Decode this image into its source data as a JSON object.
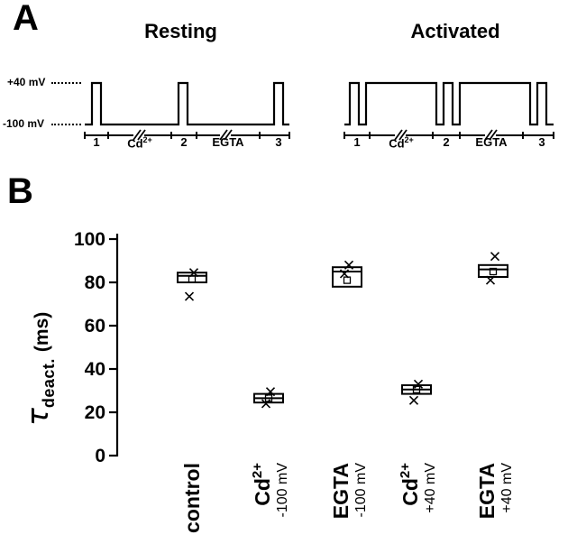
{
  "figure": {
    "panelA": {
      "label": "A",
      "resting_title": "Resting",
      "activated_title": "Activated",
      "voltage_top": "+40 mV",
      "voltage_bottom": "-100 mV",
      "timeline": {
        "seg1": "1",
        "cd_base": "Cd",
        "cd_sup": "2+",
        "seg2": "2",
        "egta": "EGTA",
        "seg3": "3"
      }
    },
    "panelB": {
      "label": "B"
    }
  },
  "chart_data": {
    "type": "box",
    "title": "",
    "ylabel": {
      "tau": "τ",
      "sub": "deact.",
      "units": "(ms)"
    },
    "ylim": [
      0,
      100
    ],
    "yticks": [
      0,
      20,
      40,
      60,
      80,
      100
    ],
    "grid": false,
    "legend": false,
    "color": "#000000",
    "categories": [
      {
        "name": "control",
        "sup": "",
        "sub": ""
      },
      {
        "name": "Cd",
        "sup": "2+",
        "sub": "-100 mV"
      },
      {
        "name": "EGTA",
        "sup": "",
        "sub": "-100 mV"
      },
      {
        "name": "Cd",
        "sup": "2+",
        "sub": "+40 mV"
      },
      {
        "name": "EGTA",
        "sup": "",
        "sub": "+40 mV"
      }
    ],
    "boxes": [
      {
        "category": "control",
        "box_low": 80,
        "box_high": 84.5,
        "median": 83,
        "mean": 81.5,
        "points": [
          84.5,
          73.5
        ]
      },
      {
        "category": "Cd2+ -100 mV",
        "box_low": 24.5,
        "box_high": 28.5,
        "median": 26.5,
        "mean": 26.5,
        "points": [
          29.5,
          24
        ]
      },
      {
        "category": "EGTA -100 mV",
        "box_low": 78,
        "box_high": 87,
        "median": 85,
        "mean": 81,
        "points": [
          88,
          84
        ]
      },
      {
        "category": "Cd2+ +40 mV",
        "box_low": 28.5,
        "box_high": 32.5,
        "median": 30.5,
        "mean": 30.5,
        "points": [
          33,
          25.5
        ]
      },
      {
        "category": "EGTA +40 mV",
        "box_low": 82.5,
        "box_high": 88,
        "median": 86,
        "mean": 85,
        "points": [
          92,
          81
        ]
      }
    ]
  }
}
